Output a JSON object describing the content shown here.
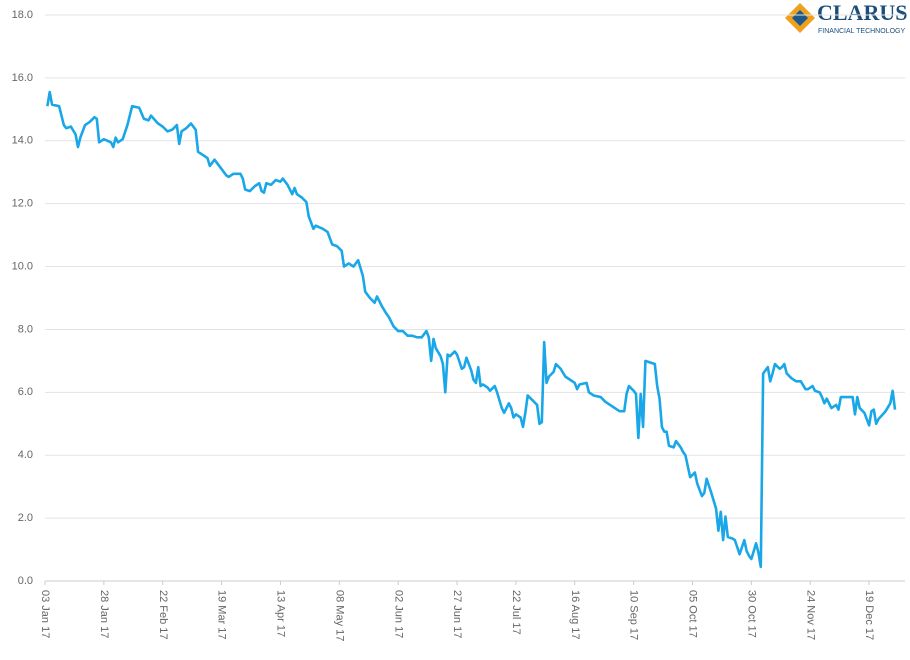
{
  "chart_data": {
    "type": "line",
    "logo": {
      "name": "CLARUS",
      "tagline": "FINANCIAL TECHNOLOGY"
    },
    "color": "#1aa7e8",
    "grid": true,
    "ylim": [
      0,
      18
    ],
    "yticks": [
      {
        "value": 0,
        "label": "0.0"
      },
      {
        "value": 2,
        "label": "2.0"
      },
      {
        "value": 4,
        "label": "4.0"
      },
      {
        "value": 6,
        "label": "6.0"
      },
      {
        "value": 8,
        "label": "8.0"
      },
      {
        "value": 10,
        "label": "10.0"
      },
      {
        "value": 12,
        "label": "12.0"
      },
      {
        "value": 14,
        "label": "14.0"
      },
      {
        "value": 16,
        "label": "16.0"
      },
      {
        "value": 18,
        "label": "18.0"
      }
    ],
    "xlim": [
      "2017-01-03",
      "2017-12-30"
    ],
    "xticks": [
      {
        "value": "2017-01-03",
        "label": "03 Jan 17"
      },
      {
        "value": "2017-01-28",
        "label": "28 Jan 17"
      },
      {
        "value": "2017-02-22",
        "label": "22 Feb 17"
      },
      {
        "value": "2017-03-19",
        "label": "19 Mar 17"
      },
      {
        "value": "2017-04-13",
        "label": "13 Apr 17"
      },
      {
        "value": "2017-05-08",
        "label": "08 May 17"
      },
      {
        "value": "2017-06-02",
        "label": "02 Jun 17"
      },
      {
        "value": "2017-06-27",
        "label": "27 Jun 17"
      },
      {
        "value": "2017-07-22",
        "label": "22 Jul 17"
      },
      {
        "value": "2017-08-16",
        "label": "16 Aug 17"
      },
      {
        "value": "2017-09-10",
        "label": "10 Sep 17"
      },
      {
        "value": "2017-10-05",
        "label": "05 Oct 17"
      },
      {
        "value": "2017-10-30",
        "label": "30 Oct 17"
      },
      {
        "value": "2017-11-24",
        "label": "24 Nov 17"
      },
      {
        "value": "2017-12-19",
        "label": "19 Dec 17"
      }
    ],
    "x": [
      "2017-01-04",
      "2017-01-05",
      "2017-01-06",
      "2017-01-09",
      "2017-01-11",
      "2017-01-12",
      "2017-01-14",
      "2017-01-16",
      "2017-01-17",
      "2017-01-18",
      "2017-01-20",
      "2017-01-22",
      "2017-01-24",
      "2017-01-25",
      "2017-01-26",
      "2017-01-28",
      "2017-01-31",
      "2017-02-01",
      "2017-02-02",
      "2017-02-03",
      "2017-02-05",
      "2017-02-07",
      "2017-02-09",
      "2017-02-12",
      "2017-02-14",
      "2017-02-16",
      "2017-02-17",
      "2017-02-20",
      "2017-02-22",
      "2017-02-24",
      "2017-02-26",
      "2017-02-28",
      "2017-03-01",
      "2017-03-02",
      "2017-03-04",
      "2017-03-06",
      "2017-03-08",
      "2017-03-09",
      "2017-03-11",
      "2017-03-13",
      "2017-03-14",
      "2017-03-16",
      "2017-03-17",
      "2017-03-19",
      "2017-03-21",
      "2017-03-22",
      "2017-03-24",
      "2017-03-27",
      "2017-03-28",
      "2017-03-29",
      "2017-03-31",
      "2017-04-02",
      "2017-04-04",
      "2017-04-05",
      "2017-04-06",
      "2017-04-07",
      "2017-04-09",
      "2017-04-11",
      "2017-04-13",
      "2017-04-14",
      "2017-04-16",
      "2017-04-18",
      "2017-04-19",
      "2017-04-20",
      "2017-04-22",
      "2017-04-24",
      "2017-04-25",
      "2017-04-27",
      "2017-04-28",
      "2017-05-01",
      "2017-05-03",
      "2017-05-05",
      "2017-05-07",
      "2017-05-09",
      "2017-05-10",
      "2017-05-12",
      "2017-05-14",
      "2017-05-16",
      "2017-05-18",
      "2017-05-19",
      "2017-05-21",
      "2017-05-23",
      "2017-05-24",
      "2017-05-26",
      "2017-05-28",
      "2017-05-29",
      "2017-05-31",
      "2017-06-02",
      "2017-06-04",
      "2017-06-06",
      "2017-06-08",
      "2017-06-10",
      "2017-06-12",
      "2017-06-14",
      "2017-06-15",
      "2017-06-16",
      "2017-06-17",
      "2017-06-18",
      "2017-06-20",
      "2017-06-21",
      "2017-06-22",
      "2017-06-23",
      "2017-06-24",
      "2017-06-26",
      "2017-06-27",
      "2017-06-29",
      "2017-06-30",
      "2017-07-01",
      "2017-07-03",
      "2017-07-04",
      "2017-07-05",
      "2017-07-06",
      "2017-07-07",
      "2017-07-08",
      "2017-07-10",
      "2017-07-11",
      "2017-07-13",
      "2017-07-14",
      "2017-07-15",
      "2017-07-16",
      "2017-07-17",
      "2017-07-19",
      "2017-07-20",
      "2017-07-21",
      "2017-07-22",
      "2017-07-24",
      "2017-07-25",
      "2017-07-26",
      "2017-07-27",
      "2017-07-29",
      "2017-07-31",
      "2017-08-01",
      "2017-08-02",
      "2017-08-03",
      "2017-08-04",
      "2017-08-05",
      "2017-08-07",
      "2017-08-08",
      "2017-08-10",
      "2017-08-12",
      "2017-08-14",
      "2017-08-16",
      "2017-08-17",
      "2017-08-18",
      "2017-08-21",
      "2017-08-22",
      "2017-08-24",
      "2017-08-27",
      "2017-08-29",
      "2017-08-31",
      "2017-09-02",
      "2017-09-04",
      "2017-09-06",
      "2017-09-07",
      "2017-09-08",
      "2017-09-10",
      "2017-09-11",
      "2017-09-12",
      "2017-09-13",
      "2017-09-14",
      "2017-09-15",
      "2017-09-17",
      "2017-09-19",
      "2017-09-20",
      "2017-09-21",
      "2017-09-22",
      "2017-09-23",
      "2017-09-24",
      "2017-09-25",
      "2017-09-27",
      "2017-09-28",
      "2017-09-30",
      "2017-10-01",
      "2017-10-02",
      "2017-10-04",
      "2017-10-06",
      "2017-10-07",
      "2017-10-09",
      "2017-10-10",
      "2017-10-11",
      "2017-10-13",
      "2017-10-15",
      "2017-10-16",
      "2017-10-17",
      "2017-10-18",
      "2017-10-19",
      "2017-10-20",
      "2017-10-22",
      "2017-10-23",
      "2017-10-25",
      "2017-10-27",
      "2017-10-28",
      "2017-10-29",
      "2017-10-30",
      "2017-11-01",
      "2017-11-02",
      "2017-11-03",
      "2017-11-04",
      "2017-11-05",
      "2017-11-06",
      "2017-11-07",
      "2017-11-08",
      "2017-11-09",
      "2017-11-11",
      "2017-11-12",
      "2017-11-13",
      "2017-11-14",
      "2017-11-16",
      "2017-11-18",
      "2017-11-20",
      "2017-11-22",
      "2017-11-23",
      "2017-11-25",
      "2017-11-26",
      "2017-11-28",
      "2017-11-29",
      "2017-11-30",
      "2017-12-01",
      "2017-12-03",
      "2017-12-05",
      "2017-12-06",
      "2017-12-07",
      "2017-12-09",
      "2017-12-12",
      "2017-12-13",
      "2017-12-14",
      "2017-12-15",
      "2017-12-17",
      "2017-12-19",
      "2017-12-20",
      "2017-12-21",
      "2017-12-22",
      "2017-12-23",
      "2017-12-26",
      "2017-12-28",
      "2017-12-29",
      "2017-12-30"
    ],
    "values": [
      15.1,
      15.55,
      15.15,
      15.1,
      14.5,
      14.4,
      14.45,
      14.2,
      13.8,
      14.1,
      14.5,
      14.6,
      14.75,
      14.7,
      13.95,
      14.05,
      13.95,
      13.8,
      14.1,
      13.95,
      14.05,
      14.5,
      15.1,
      15.05,
      14.7,
      14.65,
      14.8,
      14.55,
      14.45,
      14.3,
      14.35,
      14.5,
      13.9,
      14.3,
      14.4,
      14.55,
      14.35,
      13.65,
      13.55,
      13.45,
      13.2,
      13.4,
      13.3,
      13.1,
      12.9,
      12.85,
      12.95,
      12.95,
      12.8,
      12.45,
      12.4,
      12.55,
      12.65,
      12.4,
      12.35,
      12.65,
      12.6,
      12.75,
      12.7,
      12.8,
      12.6,
      12.3,
      12.5,
      12.3,
      12.2,
      12.05,
      11.6,
      11.2,
      11.3,
      11.2,
      11.1,
      10.7,
      10.65,
      10.5,
      10.0,
      10.1,
      10.0,
      10.2,
      9.7,
      9.2,
      9.0,
      8.85,
      9.05,
      8.75,
      8.5,
      8.4,
      8.1,
      7.95,
      7.95,
      7.8,
      7.8,
      7.75,
      7.75,
      7.95,
      7.75,
      7.0,
      7.7,
      7.4,
      7.15,
      6.9,
      6.0,
      7.2,
      7.15,
      7.3,
      7.2,
      6.75,
      6.8,
      7.1,
      6.7,
      6.4,
      6.3,
      6.8,
      6.2,
      6.25,
      6.15,
      6.05,
      6.2,
      6.0,
      5.75,
      5.5,
      5.35,
      5.65,
      5.5,
      5.2,
      5.3,
      5.2,
      4.9,
      5.35,
      5.9,
      5.75,
      5.6,
      5.0,
      5.05,
      7.6,
      6.3,
      6.5,
      6.65,
      6.9,
      6.75,
      6.5,
      6.4,
      6.3,
      6.1,
      6.25,
      6.3,
      6.0,
      5.9,
      5.85,
      5.7,
      5.6,
      5.5,
      5.4,
      5.4,
      5.95,
      6.2,
      6.05,
      5.95,
      4.55,
      5.95,
      4.9,
      7.0,
      6.95,
      6.9,
      6.2,
      5.8,
      4.9,
      4.75,
      4.75,
      4.3,
      4.25,
      4.45,
      4.25,
      4.1,
      4.0,
      3.3,
      3.45,
      3.1,
      2.7,
      2.8,
      3.25,
      2.8,
      2.3,
      1.6,
      2.2,
      1.3,
      2.05,
      1.4,
      1.35,
      1.3,
      0.85,
      1.3,
      0.95,
      0.8,
      0.7,
      1.2,
      0.9,
      0.45,
      6.6,
      6.7,
      6.8,
      6.35,
      6.6,
      6.9,
      6.75,
      6.8,
      6.9,
      6.6,
      6.45,
      6.35,
      6.35,
      6.1,
      6.1,
      6.2,
      6.05,
      6.0,
      5.85,
      5.65,
      5.8,
      5.5,
      5.6,
      5.45,
      5.85,
      5.85,
      5.85,
      5.3,
      5.85,
      5.5,
      5.35,
      4.95,
      5.4,
      5.45,
      5.0,
      5.15,
      5.4,
      5.65,
      6.05,
      5.45
    ]
  }
}
